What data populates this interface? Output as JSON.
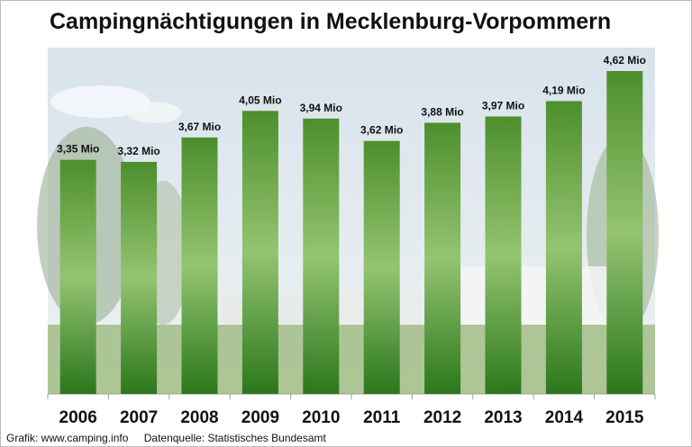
{
  "title": "Campingnächtigungen in Mecklenburg-Vorpommern",
  "footer": {
    "credit": "Grafik: www.camping.info",
    "source": "Datenquelle:  Statistisches Bundesamt"
  },
  "colors": {
    "bar_top": "#4d8f2c",
    "bar_mid": "#8fc06a",
    "bar_bottom": "#2f7a1f",
    "sky": "#dfe8ee",
    "grass": "#9cb981"
  },
  "chart_data": {
    "type": "bar",
    "categories": [
      "2006",
      "2007",
      "2008",
      "2009",
      "2010",
      "2011",
      "2012",
      "2013",
      "2014",
      "2015"
    ],
    "values": [
      3.35,
      3.32,
      3.67,
      4.05,
      3.94,
      3.62,
      3.88,
      3.97,
      4.19,
      4.62
    ],
    "labels": [
      "3,35 Mio",
      "3,32 Mio",
      "3,67 Mio",
      "4,05 Mio",
      "3,94 Mio",
      "3,62 Mio",
      "3,88 Mio",
      "3,97 Mio",
      "4,19 Mio",
      "4,62 Mio"
    ],
    "title": "Campingnächtigungen in Mecklenburg-Vorpommern",
    "xlabel": "",
    "ylabel": "",
    "grid": false,
    "background": "photo of a campground (trees, tents, caravans)"
  }
}
